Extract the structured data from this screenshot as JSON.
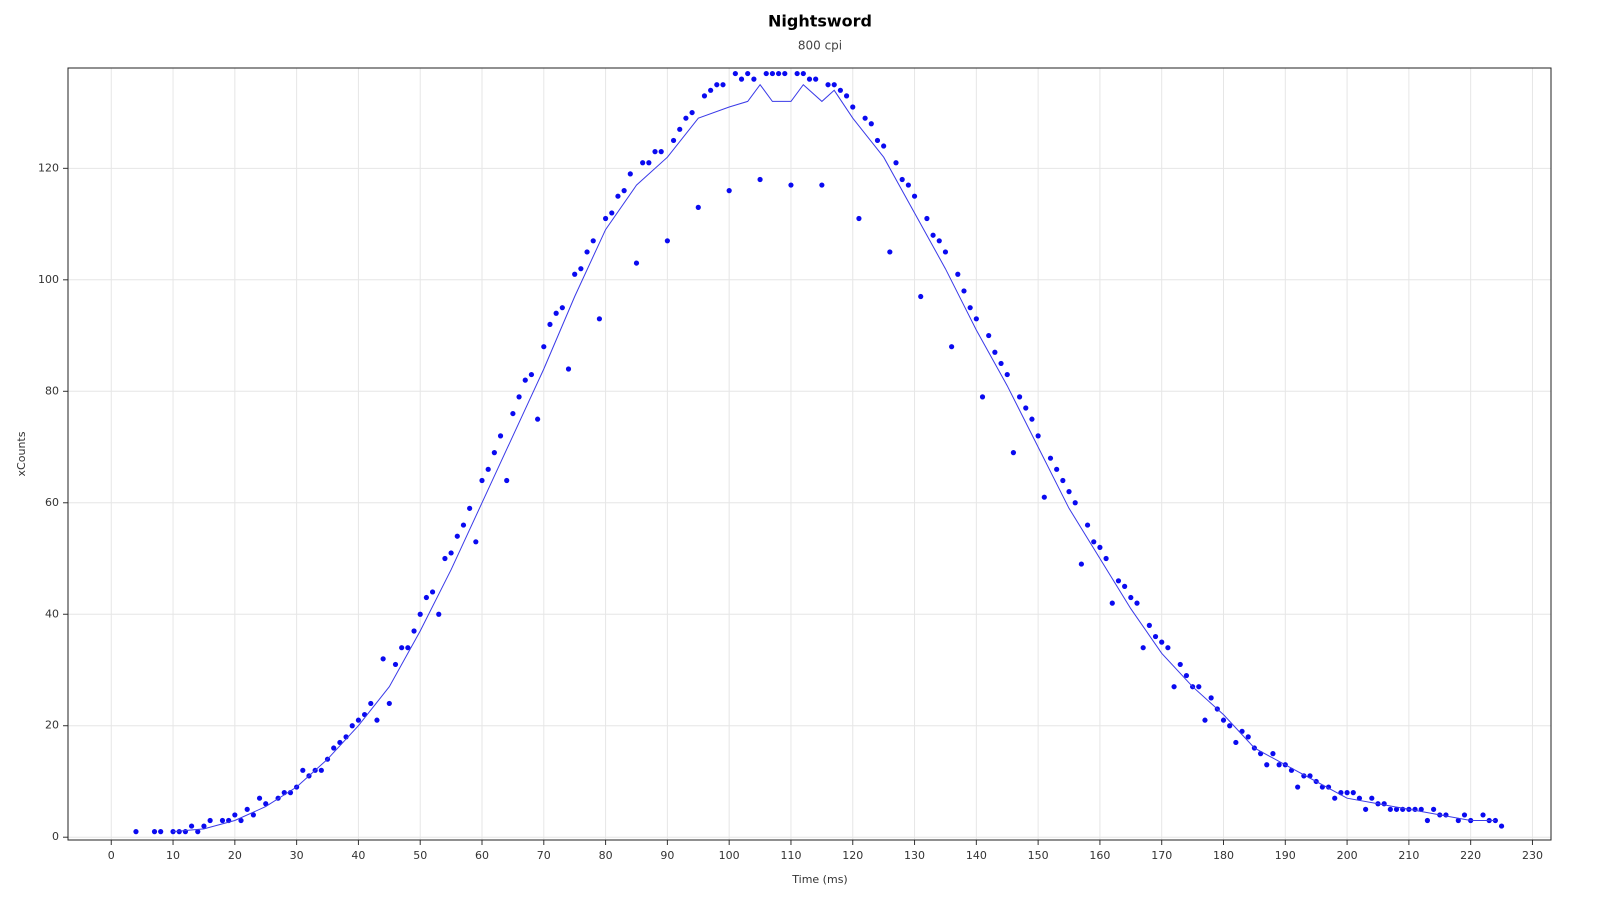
{
  "chart_data": {
    "type": "scatter",
    "title": "Nightsword",
    "subtitle": "800 cpi",
    "x_label": "Time (ms)",
    "y_label": "xCounts",
    "xlim": [
      -7,
      233
    ],
    "ylim": [
      -0.5,
      138
    ],
    "xticks": [
      0,
      10,
      20,
      30,
      40,
      50,
      60,
      70,
      80,
      90,
      100,
      110,
      120,
      130,
      140,
      150,
      160,
      170,
      180,
      190,
      200,
      210,
      220,
      230
    ],
    "yticks": [
      0,
      20,
      40,
      60,
      80,
      100,
      120
    ],
    "grid": true,
    "series": [
      {
        "style": "points",
        "color": "#0a0af0",
        "x": [
          4,
          7,
          8,
          10,
          11,
          12,
          13,
          14,
          15,
          16,
          18,
          19,
          20,
          21,
          22,
          23,
          24,
          25,
          27,
          28,
          29,
          30,
          31,
          32,
          33,
          34,
          35,
          36,
          37,
          38,
          39,
          40,
          41,
          42,
          43,
          44,
          45,
          46,
          47,
          48,
          49,
          50,
          51,
          52,
          53,
          54,
          55,
          56,
          57,
          58,
          59,
          60,
          61,
          62,
          63,
          64,
          65,
          66,
          67,
          68,
          69,
          70,
          71,
          72,
          73,
          74,
          75,
          76,
          77,
          78,
          79,
          80,
          81,
          82,
          83,
          84,
          85,
          86,
          87,
          88,
          89,
          90,
          91,
          92,
          93,
          94,
          95,
          96,
          97,
          98,
          99,
          100,
          101,
          102,
          103,
          104,
          105,
          106,
          107,
          108,
          109,
          110,
          111,
          112,
          113,
          114,
          115,
          116,
          117,
          118,
          119,
          120,
          121,
          122,
          123,
          124,
          125,
          126,
          127,
          128,
          129,
          130,
          131,
          132,
          133,
          134,
          135,
          136,
          137,
          138,
          139,
          140,
          141,
          142,
          143,
          144,
          145,
          146,
          147,
          148,
          149,
          150,
          151,
          152,
          153,
          154,
          155,
          156,
          157,
          158,
          159,
          160,
          161,
          162,
          163,
          164,
          165,
          166,
          167,
          168,
          169,
          170,
          171,
          172,
          173,
          174,
          175,
          176,
          177,
          178,
          179,
          180,
          181,
          182,
          183,
          184,
          185,
          186,
          187,
          188,
          189,
          190,
          191,
          192,
          193,
          194,
          195,
          196,
          197,
          198,
          199,
          200,
          201,
          202,
          203,
          204,
          205,
          206,
          207,
          208,
          209,
          210,
          211,
          212,
          213,
          214,
          215,
          216,
          218,
          219,
          220,
          222,
          223,
          224,
          225
        ],
        "values": [
          1,
          1,
          1,
          1,
          1,
          1,
          2,
          1,
          2,
          3,
          3,
          3,
          4,
          3,
          5,
          4,
          7,
          6,
          7,
          8,
          8,
          9,
          12,
          11,
          12,
          12,
          14,
          16,
          17,
          18,
          20,
          21,
          22,
          24,
          21,
          32,
          24,
          31,
          34,
          34,
          37,
          40,
          43,
          44,
          40,
          50,
          51,
          54,
          56,
          59,
          53,
          64,
          66,
          69,
          72,
          64,
          76,
          79,
          82,
          83,
          75,
          88,
          92,
          94,
          95,
          84,
          101,
          102,
          105,
          107,
          93,
          111,
          112,
          115,
          116,
          119,
          103,
          121,
          121,
          123,
          123,
          107,
          125,
          127,
          129,
          130,
          113,
          133,
          134,
          135,
          135,
          116,
          137,
          136,
          137,
          136,
          118,
          137,
          137,
          137,
          137,
          117,
          137,
          137,
          136,
          136,
          117,
          135,
          135,
          134,
          133,
          131,
          111,
          129,
          128,
          125,
          124,
          105,
          121,
          118,
          117,
          115,
          97,
          111,
          108,
          107,
          105,
          88,
          101,
          98,
          95,
          93,
          79,
          90,
          87,
          85,
          83,
          69,
          79,
          77,
          75,
          72,
          61,
          68,
          66,
          64,
          62,
          60,
          49,
          56,
          53,
          52,
          50,
          42,
          46,
          45,
          43,
          42,
          34,
          38,
          36,
          35,
          34,
          27,
          31,
          29,
          27,
          27,
          21,
          25,
          23,
          21,
          20,
          17,
          19,
          18,
          16,
          15,
          13,
          15,
          13,
          13,
          12,
          9,
          11,
          11,
          10,
          9,
          9,
          7,
          8,
          8,
          8,
          7,
          5,
          7,
          6,
          6,
          5,
          5,
          5,
          5,
          5,
          5,
          3,
          5,
          4,
          4,
          3,
          4,
          3,
          4,
          3,
          3,
          2
        ]
      },
      {
        "style": "line",
        "color": "#3a3ae8",
        "x": [
          10,
          15,
          20,
          25,
          30,
          35,
          40,
          45,
          50,
          55,
          60,
          65,
          70,
          75,
          80,
          85,
          90,
          95,
          100,
          103,
          105,
          107,
          110,
          112,
          115,
          117,
          120,
          125,
          130,
          135,
          140,
          145,
          150,
          155,
          160,
          165,
          170,
          175,
          180,
          185,
          190,
          195,
          200,
          205,
          210,
          215,
          220,
          224
        ],
        "values": [
          1,
          1.5,
          3,
          5.5,
          9,
          14,
          20,
          27,
          37,
          48,
          60,
          72,
          84,
          97,
          109,
          117,
          122,
          129,
          131,
          132,
          135,
          132,
          132,
          135,
          132,
          134,
          129,
          122,
          112,
          102,
          91,
          81,
          70,
          59,
          50,
          41,
          33,
          27,
          22,
          16,
          13,
          10,
          7,
          6,
          5,
          4,
          3,
          3
        ]
      }
    ]
  }
}
